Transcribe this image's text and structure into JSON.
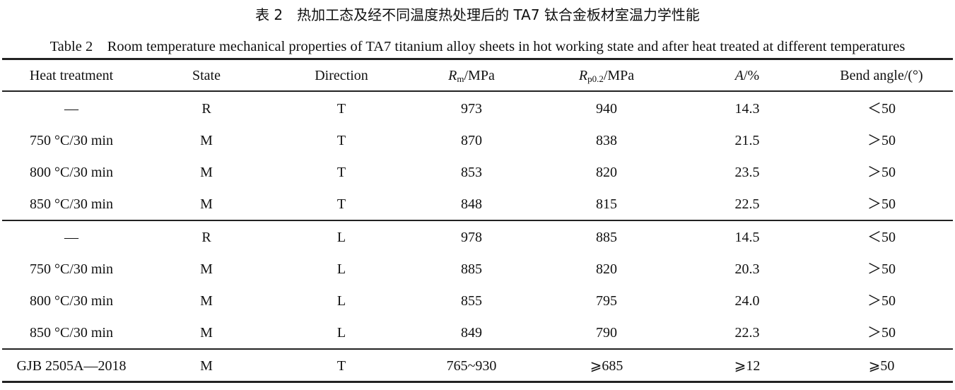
{
  "caption": {
    "cn": "表 2　热加工态及经不同温度热处理后的 TA7 钛合金板材室温力学性能",
    "en": "Table 2　Room temperature mechanical properties of TA7 titanium alloy sheets in hot working state and after heat treated at different temperatures"
  },
  "headers": {
    "heat_treatment": "Heat treatment",
    "state": "State",
    "direction": "Direction",
    "rm_sym": "R",
    "rm_sub": "m",
    "rm_unit": "/MPa",
    "rp_sym": "R",
    "rp_sub": "p0.2",
    "rp_unit": "/MPa",
    "a_sym": "A",
    "a_unit": "/%",
    "bend": "Bend angle/(°)"
  },
  "rows": [
    [
      "—",
      "R",
      "T",
      "973",
      "940",
      "14.3",
      "＜50"
    ],
    [
      "750 °C/30 min",
      "M",
      "T",
      "870",
      "838",
      "21.5",
      "＞50"
    ],
    [
      "800 °C/30 min",
      "M",
      "T",
      "853",
      "820",
      "23.5",
      "＞50"
    ],
    [
      "850 °C/30 min",
      "M",
      "T",
      "848",
      "815",
      "22.5",
      "＞50"
    ],
    [
      "—",
      "R",
      "L",
      "978",
      "885",
      "14.5",
      "＜50"
    ],
    [
      "750 °C/30 min",
      "M",
      "L",
      "885",
      "820",
      "20.3",
      "＞50"
    ],
    [
      "800 °C/30 min",
      "M",
      "L",
      "855",
      "795",
      "24.0",
      "＞50"
    ],
    [
      "850 °C/30 min",
      "M",
      "L",
      "849",
      "790",
      "22.3",
      "＞50"
    ],
    [
      "GJB 2505A—2018",
      "M",
      "T",
      "765~930",
      "⩾685",
      "⩾12",
      "⩾50"
    ]
  ]
}
